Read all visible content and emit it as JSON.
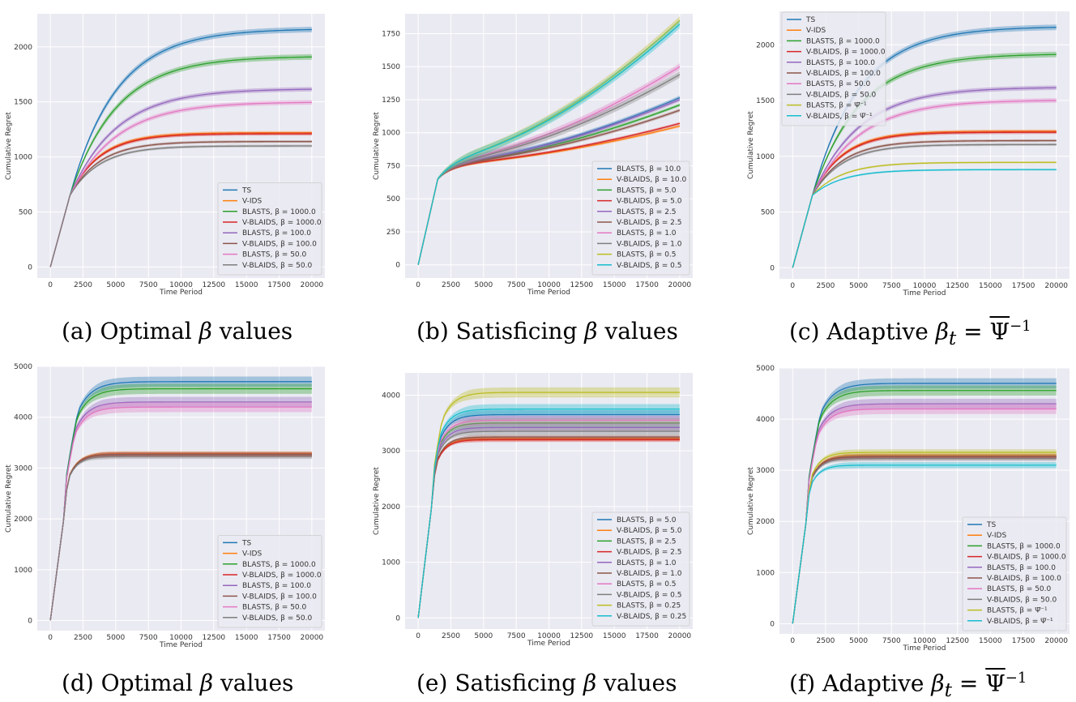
{
  "colors": {
    "bg": "#eaeaf2",
    "grid": "#ffffff",
    "c0": "#1f77b4",
    "c1": "#ff7f0e",
    "c2": "#2ca02c",
    "c3": "#d62728",
    "c4": "#9467bd",
    "c5": "#8c564b",
    "c6": "#e377c2",
    "c7": "#7f7f7f",
    "c8": "#bcbd22",
    "c9": "#17becf"
  },
  "captions": {
    "a": {
      "prefix": "(a) Optimal ",
      "sym": "β",
      "suffix": " values"
    },
    "b": {
      "prefix": "(b) Satisficing ",
      "sym": "β",
      "suffix": " values"
    },
    "c": {
      "prefix": "(c) Adaptive ",
      "sym": "β",
      "sub": "t",
      "eq": " = ",
      "psi": "Ψ",
      "exp": "−1"
    },
    "d": {
      "prefix": "(d) Optimal ",
      "sym": "β",
      "suffix": " values"
    },
    "e": {
      "prefix": "(e) Satisficing ",
      "sym": "β",
      "suffix": " values"
    },
    "f": {
      "prefix": "(f) Adaptive ",
      "sym": "β",
      "sub": "t",
      "eq": " = ",
      "psi": "Ψ",
      "exp": "−1"
    }
  },
  "chart_data": [
    {
      "id": "a",
      "type": "line",
      "xlabel": "Time Period",
      "ylabel": "Cumulative Regret",
      "xlim": [
        -1000,
        21000
      ],
      "ylim": [
        -100,
        2300
      ],
      "xticks": [
        0,
        2500,
        5000,
        7500,
        10000,
        12500,
        15000,
        17500,
        20000
      ],
      "yticks": [
        0,
        500,
        1000,
        1500,
        2000
      ],
      "legend_position": "lower-right",
      "series": [
        {
          "name": "TS",
          "color": "c0",
          "final": 2165,
          "band": 25
        },
        {
          "name": "V-IDS",
          "color": "c1",
          "final": 1220,
          "band": 15
        },
        {
          "name": "BLASTS, β = 1000.0",
          "color": "c2",
          "final": 1915,
          "band": 25
        },
        {
          "name": "V-BLAIDS, β = 1000.0",
          "color": "c3",
          "final": 1210,
          "band": 15
        },
        {
          "name": "BLASTS, β = 100.0",
          "color": "c4",
          "final": 1620,
          "band": 20
        },
        {
          "name": "V-BLAIDS, β = 100.0",
          "color": "c5",
          "final": 1140,
          "band": 12
        },
        {
          "name": "BLASTS, β = 50.0",
          "color": "c6",
          "final": 1500,
          "band": 20
        },
        {
          "name": "V-BLAIDS, β = 50.0",
          "color": "c7",
          "final": 1100,
          "band": 12
        }
      ]
    },
    {
      "id": "b",
      "type": "line",
      "xlabel": "Time Period",
      "ylabel": "Cumulative Regret",
      "xlim": [
        -1000,
        21000
      ],
      "ylim": [
        -100,
        1900
      ],
      "xticks": [
        0,
        2500,
        5000,
        7500,
        10000,
        12500,
        15000,
        17500,
        20000
      ],
      "yticks": [
        0,
        250,
        500,
        750,
        1000,
        1250,
        1500,
        1750
      ],
      "legend_position": "lower-right",
      "series": [
        {
          "name": "BLASTS, β = 10.0",
          "color": "c0",
          "final": 1265,
          "band": 15
        },
        {
          "name": "V-BLAIDS, β = 10.0",
          "color": "c1",
          "final": 1050,
          "band": 10
        },
        {
          "name": "BLASTS, β = 5.0",
          "color": "c2",
          "final": 1210,
          "band": 12
        },
        {
          "name": "V-BLAIDS, β = 5.0",
          "color": "c3",
          "final": 1070,
          "band": 10
        },
        {
          "name": "BLASTS, β = 2.5",
          "color": "c4",
          "final": 1250,
          "band": 15
        },
        {
          "name": "V-BLAIDS, β = 2.5",
          "color": "c5",
          "final": 1170,
          "band": 12
        },
        {
          "name": "BLASTS, β = 1.0",
          "color": "c6",
          "final": 1500,
          "band": 25
        },
        {
          "name": "V-BLAIDS, β = 1.0",
          "color": "c7",
          "final": 1440,
          "band": 25
        },
        {
          "name": "BLASTS, β = 0.5",
          "color": "c8",
          "final": 1850,
          "band": 30
        },
        {
          "name": "V-BLAIDS, β = 0.5",
          "color": "c9",
          "final": 1820,
          "band": 30
        }
      ]
    },
    {
      "id": "c",
      "type": "line",
      "xlabel": "Time Period",
      "ylabel": "Cumulative Regret",
      "xlim": [
        -1000,
        21000
      ],
      "ylim": [
        -100,
        2300
      ],
      "xticks": [
        0,
        2500,
        5000,
        7500,
        10000,
        12500,
        15000,
        17500,
        20000
      ],
      "yticks": [
        0,
        500,
        1000,
        1500,
        2000
      ],
      "legend_position": "upper-left",
      "series": [
        {
          "name": "TS",
          "color": "c0",
          "final": 2165,
          "band": 25
        },
        {
          "name": "V-IDS",
          "color": "c1",
          "final": 1225,
          "band": 15
        },
        {
          "name": "BLASTS, β = 1000.0",
          "color": "c2",
          "final": 1920,
          "band": 25
        },
        {
          "name": "V-BLAIDS, β = 1000.0",
          "color": "c3",
          "final": 1215,
          "band": 15
        },
        {
          "name": "BLASTS, β = 100.0",
          "color": "c4",
          "final": 1620,
          "band": 20
        },
        {
          "name": "V-BLAIDS, β = 100.0",
          "color": "c5",
          "final": 1140,
          "band": 12
        },
        {
          "name": "BLASTS, β = 50.0",
          "color": "c6",
          "final": 1505,
          "band": 20
        },
        {
          "name": "V-BLAIDS, β = 50.0",
          "color": "c7",
          "final": 1105,
          "band": 12
        },
        {
          "name": "BLASTS, β = Ψ̅⁻¹",
          "color": "c8",
          "final": 945,
          "band": 8
        },
        {
          "name": "V-BLAIDS, β = Ψ̅⁻¹",
          "color": "c9",
          "final": 880,
          "band": 8
        }
      ]
    },
    {
      "id": "d",
      "type": "line",
      "xlabel": "Time Period",
      "ylabel": "Cumulative Regret",
      "xlim": [
        -1000,
        21000
      ],
      "ylim": [
        -200,
        5000
      ],
      "xticks": [
        0,
        2500,
        5000,
        7500,
        10000,
        12500,
        15000,
        17500,
        20000
      ],
      "yticks": [
        0,
        1000,
        2000,
        3000,
        4000,
        5000
      ],
      "legend_position": "lower-right",
      "series": [
        {
          "name": "TS",
          "color": "c0",
          "final": 4700,
          "band": 100
        },
        {
          "name": "V-IDS",
          "color": "c1",
          "final": 3280,
          "band": 50
        },
        {
          "name": "BLASTS, β = 1000.0",
          "color": "c2",
          "final": 4560,
          "band": 100
        },
        {
          "name": "V-BLAIDS, β = 1000.0",
          "color": "c3",
          "final": 3260,
          "band": 50
        },
        {
          "name": "BLASTS, β = 100.0",
          "color": "c4",
          "final": 4300,
          "band": 100
        },
        {
          "name": "V-BLAIDS, β = 100.0",
          "color": "c5",
          "final": 3270,
          "band": 50
        },
        {
          "name": "BLASTS, β = 50.0",
          "color": "c6",
          "final": 4200,
          "band": 100
        },
        {
          "name": "V-BLAIDS, β = 50.0",
          "color": "c7",
          "final": 3230,
          "band": 50
        }
      ]
    },
    {
      "id": "e",
      "type": "line",
      "xlabel": "Time Period",
      "ylabel": "Cumulative Regret",
      "xlim": [
        -1000,
        21000
      ],
      "ylim": [
        -200,
        4400
      ],
      "xticks": [
        0,
        2500,
        5000,
        7500,
        10000,
        12500,
        15000,
        17500,
        20000
      ],
      "yticks": [
        0,
        1000,
        2000,
        3000,
        4000
      ],
      "legend_position": "lower-right",
      "series": [
        {
          "name": "BLASTS, β = 5.0",
          "color": "c0",
          "final": 3650,
          "band": 80
        },
        {
          "name": "V-BLAIDS, β = 5.0",
          "color": "c1",
          "final": 3220,
          "band": 40
        },
        {
          "name": "BLASTS, β = 2.5",
          "color": "c2",
          "final": 3500,
          "band": 80
        },
        {
          "name": "V-BLAIDS, β = 2.5",
          "color": "c3",
          "final": 3200,
          "band": 40
        },
        {
          "name": "BLASTS, β = 1.0",
          "color": "c4",
          "final": 3420,
          "band": 70
        },
        {
          "name": "V-BLAIDS, β = 1.0",
          "color": "c5",
          "final": 3250,
          "band": 40
        },
        {
          "name": "BLASTS, β = 0.5",
          "color": "c6",
          "final": 3550,
          "band": 80
        },
        {
          "name": "V-BLAIDS, β = 0.5",
          "color": "c7",
          "final": 3350,
          "band": 60
        },
        {
          "name": "BLASTS, β = 0.25",
          "color": "c8",
          "final": 4050,
          "band": 90
        },
        {
          "name": "V-BLAIDS, β = 0.25",
          "color": "c9",
          "final": 3750,
          "band": 90
        }
      ]
    },
    {
      "id": "f",
      "type": "line",
      "xlabel": "Time Period",
      "ylabel": "Cumulative Regret",
      "xlim": [
        -1000,
        21000
      ],
      "ylim": [
        -200,
        5000
      ],
      "xticks": [
        0,
        2500,
        5000,
        7500,
        10000,
        12500,
        15000,
        17500,
        20000
      ],
      "yticks": [
        0,
        1000,
        2000,
        3000,
        4000,
        5000
      ],
      "legend_position": "lower-right",
      "series": [
        {
          "name": "TS",
          "color": "c0",
          "final": 4700,
          "band": 100
        },
        {
          "name": "V-IDS",
          "color": "c1",
          "final": 3280,
          "band": 50
        },
        {
          "name": "BLASTS, β = 1000.0",
          "color": "c2",
          "final": 4560,
          "band": 100
        },
        {
          "name": "V-BLAIDS, β = 1000.0",
          "color": "c3",
          "final": 3260,
          "band": 50
        },
        {
          "name": "BLASTS, β = 100.0",
          "color": "c4",
          "final": 4300,
          "band": 100
        },
        {
          "name": "V-BLAIDS, β = 100.0",
          "color": "c5",
          "final": 3270,
          "band": 50
        },
        {
          "name": "BLASTS, β = 50.0",
          "color": "c6",
          "final": 4200,
          "band": 100
        },
        {
          "name": "V-BLAIDS, β = 50.0",
          "color": "c7",
          "final": 3230,
          "band": 50
        },
        {
          "name": "BLASTS, β = Ψ̅⁻¹",
          "color": "c8",
          "final": 3350,
          "band": 60
        },
        {
          "name": "V-BLAIDS, β = Ψ̅⁻¹",
          "color": "c9",
          "final": 3100,
          "band": 60
        }
      ]
    }
  ]
}
